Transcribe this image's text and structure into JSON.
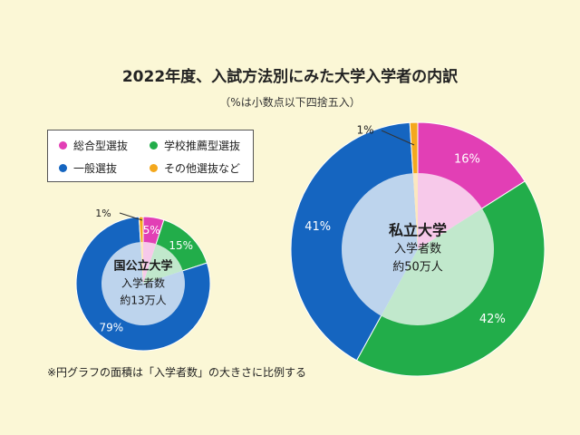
{
  "title": "2022年度、入試方法別にみた大学入学者の内訳",
  "subtitle": "（%は小数点以下四捨五入）",
  "note": "※円グラフの面積は「入学者数」の大きさに比例する",
  "legend": [
    {
      "label": "総合型選抜",
      "color": "#e23fb5"
    },
    {
      "label": "学校推薦型選抜",
      "color": "#22ad4a"
    },
    {
      "label": "一般選抜",
      "color": "#1565c0"
    },
    {
      "label": "その他選抜など",
      "color": "#f4a81d"
    }
  ],
  "chart_data": [
    {
      "type": "pie",
      "center_title": "国公立大学",
      "center_lines": [
        "入学者数",
        "約13万人"
      ],
      "slices": [
        {
          "category": "総合型選抜",
          "value": 5,
          "label": "5%",
          "color": "#e23fb5"
        },
        {
          "category": "学校推薦型選抜",
          "value": 15,
          "label": "15%",
          "color": "#22ad4a"
        },
        {
          "category": "一般選抜",
          "value": 79,
          "label": "79%",
          "color": "#1565c0"
        },
        {
          "category": "その他選抜など",
          "value": 1,
          "label": "1%",
          "color": "#f4a81d"
        }
      ]
    },
    {
      "type": "pie",
      "center_title": "私立大学",
      "center_lines": [
        "入学者数",
        "約50万人"
      ],
      "slices": [
        {
          "category": "総合型選抜",
          "value": 16,
          "label": "16%",
          "color": "#e23fb5"
        },
        {
          "category": "学校推薦型選抜",
          "value": 42,
          "label": "42%",
          "color": "#22ad4a"
        },
        {
          "category": "一般選抜",
          "value": 41,
          "label": "41%",
          "color": "#1565c0"
        },
        {
          "category": "その他選抜など",
          "value": 1,
          "label": "1%",
          "color": "#f4a81d"
        }
      ]
    }
  ]
}
